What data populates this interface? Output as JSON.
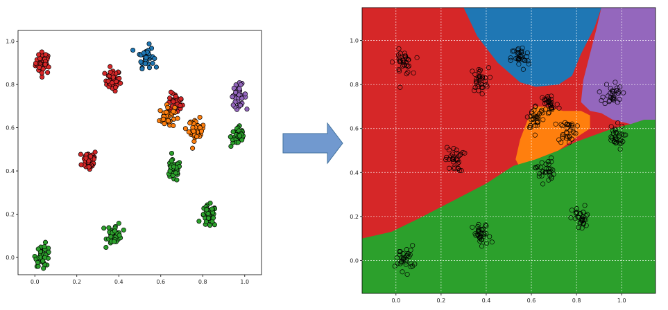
{
  "chart_data": [
    {
      "type": "scatter",
      "title": "",
      "xlabel": "",
      "ylabel": "",
      "xlim": [
        -0.08,
        1.08
      ],
      "ylim": [
        -0.08,
        1.05
      ],
      "x_ticks": [
        "0.0",
        "0.2",
        "0.4",
        "0.6",
        "0.8",
        "1.0"
      ],
      "y_ticks": [
        "0.0",
        "0.2",
        "0.4",
        "0.6",
        "0.8",
        "1.0"
      ],
      "grid": false,
      "clusters": [
        {
          "color": "red",
          "center": [
            0.04,
            0.9
          ]
        },
        {
          "color": "red",
          "center": [
            0.37,
            0.82
          ]
        },
        {
          "color": "red",
          "center": [
            0.67,
            0.71
          ]
        },
        {
          "color": "red",
          "center": [
            0.26,
            0.45
          ]
        },
        {
          "color": "blue",
          "center": [
            0.53,
            0.93
          ]
        },
        {
          "color": "orange",
          "center": [
            0.63,
            0.65
          ]
        },
        {
          "color": "orange",
          "center": [
            0.77,
            0.59
          ]
        },
        {
          "color": "purple",
          "center": [
            0.97,
            0.75
          ]
        },
        {
          "color": "green",
          "center": [
            0.97,
            0.56
          ]
        },
        {
          "color": "green",
          "center": [
            0.66,
            0.4
          ]
        },
        {
          "color": "green",
          "center": [
            0.83,
            0.19
          ]
        },
        {
          "color": "green",
          "center": [
            0.38,
            0.11
          ]
        },
        {
          "color": "green",
          "center": [
            0.04,
            0.01
          ]
        }
      ]
    },
    {
      "type": "scatter",
      "title": "",
      "xlabel": "",
      "ylabel": "",
      "xlim": [
        -0.15,
        1.15
      ],
      "ylim": [
        -0.15,
        1.15
      ],
      "x_ticks": [
        "0.0",
        "0.2",
        "0.4",
        "0.6",
        "0.8",
        "1.0"
      ],
      "y_ticks": [
        "0.0",
        "0.2",
        "0.4",
        "0.6",
        "0.8",
        "1.0"
      ],
      "grid": true,
      "decision_regions": [
        "red",
        "blue",
        "purple",
        "orange",
        "green"
      ],
      "clusters": [
        {
          "center": [
            0.03,
            0.9
          ]
        },
        {
          "center": [
            0.37,
            0.82
          ]
        },
        {
          "center": [
            0.55,
            0.92
          ]
        },
        {
          "center": [
            0.68,
            0.71
          ]
        },
        {
          "center": [
            0.62,
            0.65
          ]
        },
        {
          "center": [
            0.96,
            0.76
          ]
        },
        {
          "center": [
            0.76,
            0.59
          ]
        },
        {
          "center": [
            0.97,
            0.56
          ]
        },
        {
          "center": [
            0.26,
            0.46
          ]
        },
        {
          "center": [
            0.66,
            0.41
          ]
        },
        {
          "center": [
            0.82,
            0.19
          ]
        },
        {
          "center": [
            0.38,
            0.11
          ]
        },
        {
          "center": [
            0.04,
            0.01
          ]
        }
      ]
    }
  ],
  "colors": {
    "red": "#d62728",
    "blue": "#1f77b4",
    "orange": "#ff7f0e",
    "green": "#2ca02c",
    "purple": "#9467bd",
    "arrow_fill": "#7199cf",
    "arrow_stroke": "#41719c"
  },
  "arrow": {
    "direction": "right"
  }
}
